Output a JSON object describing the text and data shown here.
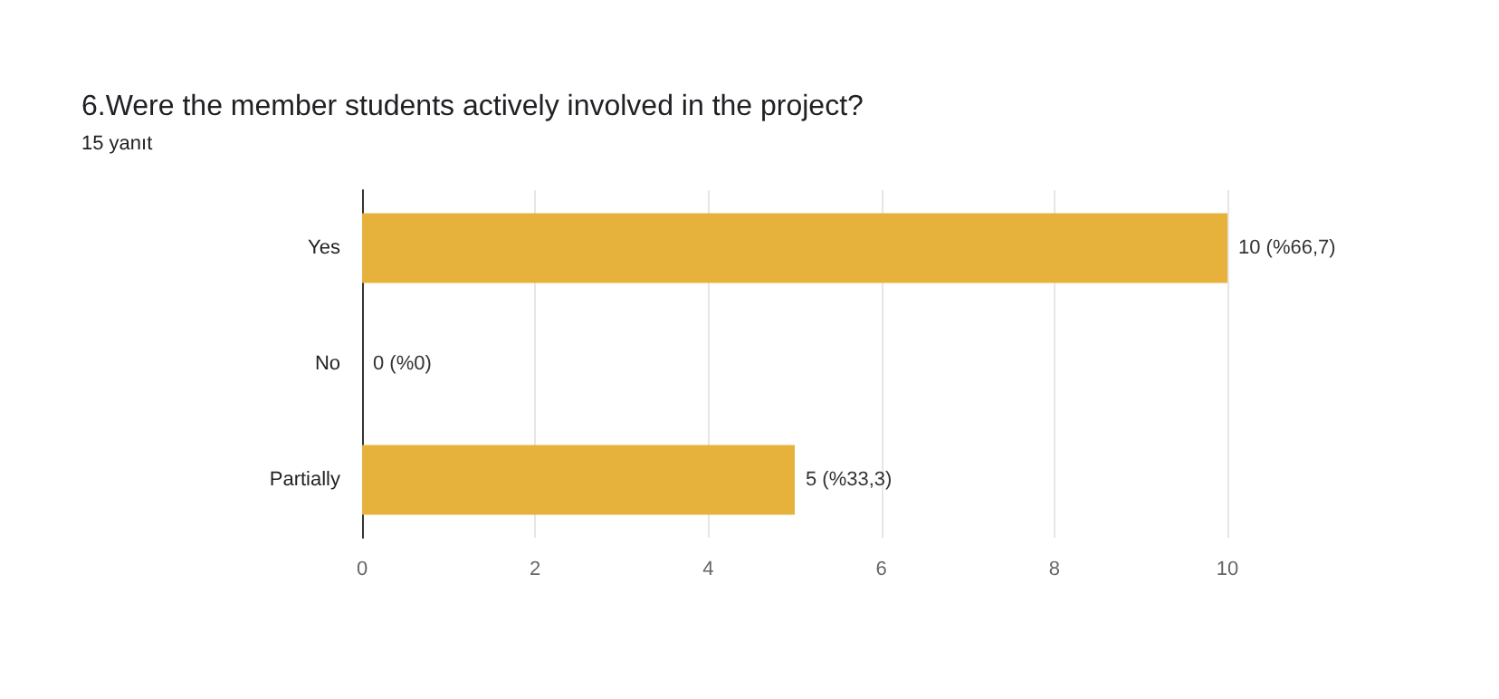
{
  "chart_data": {
    "type": "bar",
    "orientation": "horizontal",
    "title": "6.Were the member students actively involved in the project?",
    "subtitle": "15 yanıt",
    "categories": [
      "Yes",
      "No",
      "Partially"
    ],
    "values": [
      10,
      0,
      5
    ],
    "value_labels": [
      "10 (%66,7)",
      "0 (%0)",
      "5 (%33,3)"
    ],
    "color": "#e6b23c",
    "xlim": [
      0,
      10
    ],
    "xticks": [
      0,
      2,
      4,
      6,
      8,
      10
    ],
    "grid": "x"
  }
}
